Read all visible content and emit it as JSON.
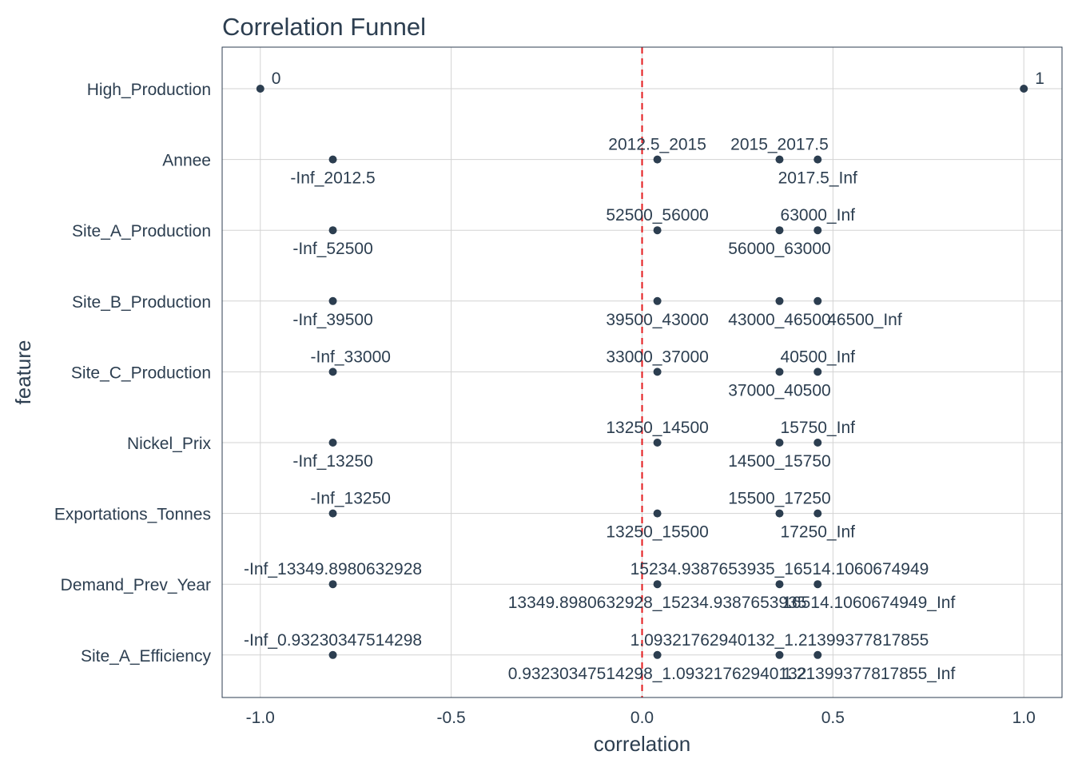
{
  "chart_data": {
    "type": "scatter",
    "title": "Correlation Funnel",
    "xlabel": "correlation",
    "ylabel": "feature",
    "xlim": [
      -1.1,
      1.1
    ],
    "xticks": [
      -1.0,
      -0.5,
      0.0,
      0.5,
      1.0
    ],
    "xtick_labels": [
      "-1.0",
      "-0.5",
      "0.0",
      "0.5",
      "1.0"
    ],
    "grid": true,
    "reference_line": {
      "x": 0,
      "color": "#e31a1c",
      "style": "dashed"
    },
    "point_color": "#2c3e50",
    "features": [
      "High_Production",
      "Annee",
      "Site_A_Production",
      "Site_B_Production",
      "Site_C_Production",
      "Nickel_Prix",
      "Exportations_Tonnes",
      "Demand_Prev_Year",
      "Site_A_Efficiency"
    ],
    "points": [
      {
        "feature": "High_Production",
        "x": -1.0,
        "label": "0",
        "label_pos": "above-right"
      },
      {
        "feature": "High_Production",
        "x": 1.0,
        "label": "1",
        "label_pos": "above-right"
      },
      {
        "feature": "Annee",
        "x": -0.81,
        "label": "-Inf_2012.5",
        "label_pos": "below"
      },
      {
        "feature": "Annee",
        "x": 0.04,
        "label": "2012.5_2015",
        "label_pos": "above"
      },
      {
        "feature": "Annee",
        "x": 0.36,
        "label": "2015_2017.5",
        "label_pos": "above"
      },
      {
        "feature": "Annee",
        "x": 0.46,
        "label": "2017.5_Inf",
        "label_pos": "below"
      },
      {
        "feature": "Site_A_Production",
        "x": -0.81,
        "label": "-Inf_52500",
        "label_pos": "below"
      },
      {
        "feature": "Site_A_Production",
        "x": 0.04,
        "label": "52500_56000",
        "label_pos": "above"
      },
      {
        "feature": "Site_A_Production",
        "x": 0.36,
        "label": "56000_63000",
        "label_pos": "below"
      },
      {
        "feature": "Site_A_Production",
        "x": 0.46,
        "label": "63000_Inf",
        "label_pos": "above"
      },
      {
        "feature": "Site_B_Production",
        "x": -0.81,
        "label": "-Inf_39500",
        "label_pos": "below"
      },
      {
        "feature": "Site_B_Production",
        "x": 0.04,
        "label": "39500_43000",
        "label_pos": "below"
      },
      {
        "feature": "Site_B_Production",
        "x": 0.36,
        "label": "43000_46500",
        "label_pos": "below"
      },
      {
        "feature": "Site_B_Production",
        "x": 0.46,
        "label": "46500_Inf",
        "label_pos": "below-right"
      },
      {
        "feature": "Site_C_Production",
        "x": -0.81,
        "label": "-Inf_33000",
        "label_pos": "above-right"
      },
      {
        "feature": "Site_C_Production",
        "x": 0.04,
        "label": "33000_37000",
        "label_pos": "above"
      },
      {
        "feature": "Site_C_Production",
        "x": 0.36,
        "label": "37000_40500",
        "label_pos": "below"
      },
      {
        "feature": "Site_C_Production",
        "x": 0.46,
        "label": "40500_Inf",
        "label_pos": "above"
      },
      {
        "feature": "Nickel_Prix",
        "x": -0.81,
        "label": "-Inf_13250",
        "label_pos": "below"
      },
      {
        "feature": "Nickel_Prix",
        "x": 0.04,
        "label": "13250_14500",
        "label_pos": "above"
      },
      {
        "feature": "Nickel_Prix",
        "x": 0.36,
        "label": "14500_15750",
        "label_pos": "below"
      },
      {
        "feature": "Nickel_Prix",
        "x": 0.46,
        "label": "15750_Inf",
        "label_pos": "above"
      },
      {
        "feature": "Exportations_Tonnes",
        "x": -0.81,
        "label": "-Inf_13250",
        "label_pos": "above-right"
      },
      {
        "feature": "Exportations_Tonnes",
        "x": 0.04,
        "label": "13250_15500",
        "label_pos": "below"
      },
      {
        "feature": "Exportations_Tonnes",
        "x": 0.36,
        "label": "15500_17250",
        "label_pos": "above"
      },
      {
        "feature": "Exportations_Tonnes",
        "x": 0.46,
        "label": "17250_Inf",
        "label_pos": "below"
      },
      {
        "feature": "Demand_Prev_Year",
        "x": -0.81,
        "label": "-Inf_13349.8980632928",
        "label_pos": "above"
      },
      {
        "feature": "Demand_Prev_Year",
        "x": 0.04,
        "label": "13349.8980632928_15234.9387653935",
        "label_pos": "below"
      },
      {
        "feature": "Demand_Prev_Year",
        "x": 0.36,
        "label": "15234.9387653935_16514.1060674949",
        "label_pos": "above"
      },
      {
        "feature": "Demand_Prev_Year",
        "x": 0.46,
        "label": "16514.1060674949_Inf",
        "label_pos": "below-right"
      },
      {
        "feature": "Site_A_Efficiency",
        "x": -0.81,
        "label": "-Inf_0.93230347514298",
        "label_pos": "above"
      },
      {
        "feature": "Site_A_Efficiency",
        "x": 0.04,
        "label": "0.93230347514298_1.09321762940132",
        "label_pos": "below"
      },
      {
        "feature": "Site_A_Efficiency",
        "x": 0.36,
        "label": "1.09321762940132_1.21399377817855",
        "label_pos": "above"
      },
      {
        "feature": "Site_A_Efficiency",
        "x": 0.46,
        "label": "1.21399377817855_Inf",
        "label_pos": "below-right"
      }
    ]
  }
}
